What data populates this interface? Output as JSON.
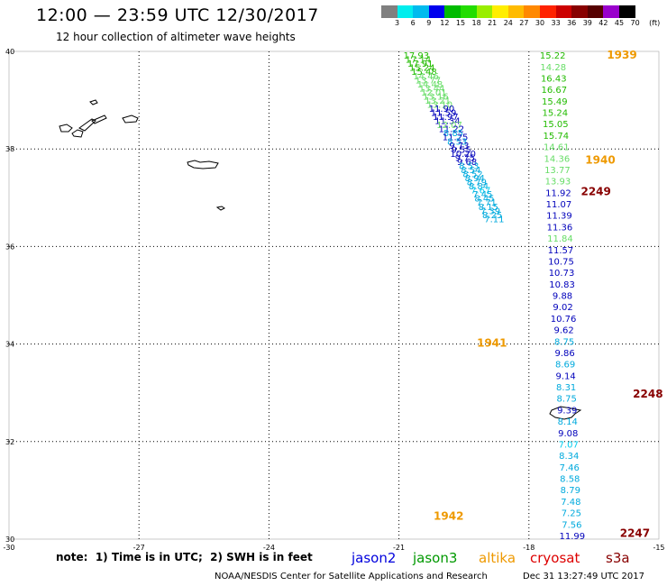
{
  "title": "12:00 — 23:59 UTC 12/30/2017",
  "subtitle": "12 hour collection of altimeter wave heights",
  "colorbar": {
    "colors": [
      "#808080",
      "#00eeee",
      "#00bbee",
      "#0000ee",
      "#00bb00",
      "#22dd00",
      "#99ee00",
      "#ffee00",
      "#ffbb00",
      "#ff8800",
      "#ff2200",
      "#cc0000",
      "#880000",
      "#550000",
      "#9900cc",
      "#000000"
    ],
    "labels": [
      "3",
      "6",
      "9",
      "12",
      "15",
      "18",
      "21",
      "24",
      "27",
      "30",
      "33",
      "36",
      "39",
      "42",
      "45",
      "70",
      "(ft)"
    ]
  },
  "map": {
    "lon_range": [
      -30,
      -15
    ],
    "lat_range": [
      30,
      40
    ],
    "lon_ticks": [
      "-30",
      "-27",
      "-24",
      "-21",
      "-18",
      "-15"
    ],
    "lat_ticks": [
      "40",
      "38",
      "36",
      "34",
      "32",
      "30"
    ],
    "grid_lons": [
      -27,
      -24,
      -21,
      -18
    ],
    "grid_lats": [
      38,
      36,
      34,
      32
    ]
  },
  "tracks": [
    {
      "id": "t1",
      "lon_start": -20.6,
      "lat_start": 39.85,
      "lon_end": -18.8,
      "lat_end": 36.5,
      "values": [
        {
          "v": "17.93",
          "c": "#22bb00"
        },
        {
          "v": "17.14",
          "c": "#22bb00"
        },
        {
          "v": "17.91",
          "c": "#22bb00"
        },
        {
          "v": "15.24",
          "c": "#22bb00"
        },
        {
          "v": "15.48",
          "c": "#22bb00"
        },
        {
          "v": "14.46",
          "c": "#66dd66"
        },
        {
          "v": "13.77",
          "c": "#66dd66"
        },
        {
          "v": "14.48",
          "c": "#66dd66"
        },
        {
          "v": "13.44",
          "c": "#66dd66"
        },
        {
          "v": "12.01",
          "c": "#66dd66"
        },
        {
          "v": "13.16",
          "c": "#66dd66"
        },
        {
          "v": "13.21",
          "c": "#66dd66"
        },
        {
          "v": "13.10",
          "c": "#66dd66"
        },
        {
          "v": "11.90",
          "c": "#0000bb"
        },
        {
          "v": "11.59",
          "c": "#0000bb"
        },
        {
          "v": "11.97",
          "c": "#0000bb"
        },
        {
          "v": "11.34",
          "c": "#0000bb"
        },
        {
          "v": "12.07",
          "c": "#66dd66"
        },
        {
          "v": "11.22",
          "c": "#0000bb"
        },
        {
          "v": "8.85",
          "c": "#00aadd"
        },
        {
          "v": "11.25",
          "c": "#0000bb"
        },
        {
          "v": "8.53",
          "c": "#00aadd"
        },
        {
          "v": "9.73",
          "c": "#0000bb"
        },
        {
          "v": "9.55",
          "c": "#0000bb"
        },
        {
          "v": "10.20",
          "c": "#0000bb"
        },
        {
          "v": "9.75",
          "c": "#0000bb"
        },
        {
          "v": "9.68",
          "c": "#0000bb"
        },
        {
          "v": "8.53",
          "c": "#00aadd"
        },
        {
          "v": "8.54",
          "c": "#00aadd"
        },
        {
          "v": "8.52",
          "c": "#00aadd"
        },
        {
          "v": "8.94",
          "c": "#00aadd"
        },
        {
          "v": "8.79",
          "c": "#00aadd"
        },
        {
          "v": "8.84",
          "c": "#00aadd"
        },
        {
          "v": "7.67",
          "c": "#00ccee"
        },
        {
          "v": "7.45",
          "c": "#00aadd"
        },
        {
          "v": "8.45",
          "c": "#00aadd"
        },
        {
          "v": "7.71",
          "c": "#00aadd"
        },
        {
          "v": "8.15",
          "c": "#00aadd"
        },
        {
          "v": "7.39",
          "c": "#00aadd"
        },
        {
          "v": "8.25",
          "c": "#00aadd"
        },
        {
          "v": "7.11",
          "c": "#00aadd"
        }
      ]
    },
    {
      "id": "t2",
      "lon_start": -17.45,
      "lat_start": 39.85,
      "lon_end": -17.0,
      "lat_end": 30.0,
      "values": [
        {
          "v": "15.22",
          "c": "#22bb00"
        },
        {
          "v": "14.28",
          "c": "#66dd66"
        },
        {
          "v": "16.43",
          "c": "#22bb00"
        },
        {
          "v": "16.67",
          "c": "#22bb00"
        },
        {
          "v": "15.49",
          "c": "#22bb00"
        },
        {
          "v": "15.24",
          "c": "#22bb00"
        },
        {
          "v": "15.05",
          "c": "#22bb00"
        },
        {
          "v": "15.74",
          "c": "#22bb00"
        },
        {
          "v": "14.61",
          "c": "#66dd66"
        },
        {
          "v": "14.36",
          "c": "#66dd66"
        },
        {
          "v": "13.77",
          "c": "#66dd66"
        },
        {
          "v": "13.93",
          "c": "#66dd66"
        },
        {
          "v": "11.92",
          "c": "#0000bb"
        },
        {
          "v": "11.07",
          "c": "#0000bb"
        },
        {
          "v": "11.39",
          "c": "#0000bb"
        },
        {
          "v": "11.36",
          "c": "#0000bb"
        },
        {
          "v": "11.84",
          "c": "#66dd66"
        },
        {
          "v": "11.57",
          "c": "#0000bb"
        },
        {
          "v": "10.75",
          "c": "#0000bb"
        },
        {
          "v": "10.73",
          "c": "#0000bb"
        },
        {
          "v": "10.83",
          "c": "#0000bb"
        },
        {
          "v": "9.88",
          "c": "#0000bb"
        },
        {
          "v": "9.02",
          "c": "#0000bb"
        },
        {
          "v": "10.76",
          "c": "#0000bb"
        },
        {
          "v": "9.62",
          "c": "#0000bb"
        },
        {
          "v": "8.75",
          "c": "#00aadd"
        },
        {
          "v": "9.86",
          "c": "#0000bb"
        },
        {
          "v": "8.69",
          "c": "#00aadd"
        },
        {
          "v": "9.14",
          "c": "#0000bb"
        },
        {
          "v": "8.31",
          "c": "#00aadd"
        },
        {
          "v": "8.75",
          "c": "#00aadd"
        },
        {
          "v": "9.39",
          "c": "#0000bb"
        },
        {
          "v": "8.14",
          "c": "#00aadd"
        },
        {
          "v": "9.08",
          "c": "#0000bb"
        },
        {
          "v": "7.07",
          "c": "#00ccee"
        },
        {
          "v": "8.34",
          "c": "#00aadd"
        },
        {
          "v": "7.46",
          "c": "#00aadd"
        },
        {
          "v": "8.58",
          "c": "#00aadd"
        },
        {
          "v": "8.79",
          "c": "#00aadd"
        },
        {
          "v": "7.48",
          "c": "#00aadd"
        },
        {
          "v": "7.25",
          "c": "#00aadd"
        },
        {
          "v": "7.56",
          "c": "#00aadd"
        },
        {
          "v": "11.99",
          "c": "#0000bb"
        }
      ]
    }
  ],
  "time_labels": [
    {
      "text": "1939",
      "lon": -16.2,
      "lat": 39.85,
      "color": "#ee9900"
    },
    {
      "text": "1940",
      "lon": -16.7,
      "lat": 37.7,
      "color": "#ee9900"
    },
    {
      "text": "2249",
      "lon": -16.8,
      "lat": 37.05,
      "color": "#880000"
    },
    {
      "text": "1941",
      "lon": -19.2,
      "lat": 33.95,
      "color": "#ee9900"
    },
    {
      "text": "2248",
      "lon": -15.6,
      "lat": 32.9,
      "color": "#880000"
    },
    {
      "text": "1942",
      "lon": -20.2,
      "lat": 30.4,
      "color": "#ee9900"
    },
    {
      "text": "2247",
      "lon": -15.9,
      "lat": 30.05,
      "color": "#880000"
    }
  ],
  "note": "note:  1) Time is in UTC;  2) SWH is in feet",
  "legend": [
    {
      "label": "jason2",
      "color": "#0000dd"
    },
    {
      "label": "jason3",
      "color": "#009900"
    },
    {
      "label": "altika",
      "color": "#ee9900"
    },
    {
      "label": "cryosat",
      "color": "#dd0000"
    },
    {
      "label": "s3a",
      "color": "#880000"
    }
  ],
  "footer_left": "NOAA/NESDIS Center for Satellite Applications and Research",
  "footer_right": "Dec 31 13:27:49 UTC 2017"
}
